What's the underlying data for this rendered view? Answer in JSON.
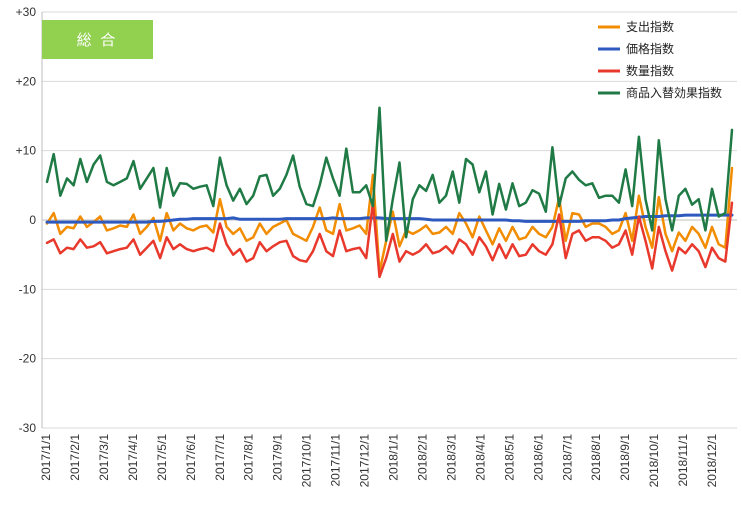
{
  "badge": {
    "label": "総 合",
    "color": "#92d050"
  },
  "chart_data": {
    "type": "line",
    "title": "",
    "xlabel": "",
    "ylabel": "",
    "ylim": [
      -30,
      30
    ],
    "y_ticks": [
      30,
      20,
      10,
      0,
      -10,
      -20,
      -30
    ],
    "y_tick_labels": [
      "+30",
      "+20",
      "+10",
      "0",
      "-10",
      "-20",
      "-30"
    ],
    "grid": true,
    "legend_position": "top-right",
    "x_tick_labels": [
      "2017/1/1",
      "2017/2/1",
      "2017/3/1",
      "2017/4/1",
      "2017/5/1",
      "2017/6/1",
      "2017/7/1",
      "2017/8/1",
      "2017/9/1",
      "2017/10/1",
      "2017/11/1",
      "2017/12/1",
      "2018/1/1",
      "2018/2/1",
      "2018/3/1",
      "2018/4/1",
      "2018/5/1",
      "2018/6/1",
      "2018/7/1",
      "2018/8/1",
      "2018/9/1",
      "2018/10/1",
      "2018/11/1",
      "2018/12/1"
    ],
    "series": [
      {
        "name": "支出指数",
        "color": "#f28c00",
        "values": [
          -0.5,
          1,
          -2,
          -1,
          -1.2,
          0.5,
          -1,
          -0.3,
          0.5,
          -1.5,
          -1.2,
          -0.8,
          -1,
          0.8,
          -2,
          -1,
          0.3,
          -3,
          1,
          -1.5,
          -0.5,
          -1.2,
          -1.5,
          -1,
          -0.8,
          -1.8,
          3,
          -1,
          -2,
          -1.2,
          -3,
          -2.5,
          -0.5,
          -2,
          -1,
          -0.5,
          0,
          -2,
          -2.5,
          -3,
          -1,
          1.8,
          -1.5,
          -2,
          2.3,
          -1.5,
          -1.2,
          -0.8,
          -2,
          6.5,
          -7.5,
          -3,
          1.2,
          -3.8,
          -1.5,
          -2,
          -1.5,
          -0.8,
          -2,
          -1.8,
          -1,
          -2,
          1,
          -0.5,
          -2.5,
          0.5,
          -1.5,
          -3.5,
          -1.2,
          -3,
          -1,
          -2.8,
          -2.5,
          -1,
          -2,
          -2.5,
          -1,
          3.2,
          -3,
          1,
          0.8,
          -1,
          -0.5,
          -0.5,
          -1,
          -2,
          -1.5,
          1,
          -3,
          3.5,
          -1,
          -4,
          3.3,
          -2,
          -4.5,
          -1.8,
          -3,
          -1,
          -2,
          -4,
          -1,
          -3.5,
          -4,
          7.5
        ],
        "line_width": 2.5
      },
      {
        "name": "価格指数",
        "color": "#2e5ac0",
        "values": [
          -0.3,
          -0.3,
          -0.3,
          -0.3,
          -0.3,
          -0.3,
          -0.3,
          -0.3,
          -0.3,
          -0.3,
          -0.3,
          -0.3,
          -0.3,
          -0.3,
          -0.3,
          -0.3,
          -0.2,
          -0.2,
          -0.1,
          0,
          0.1,
          0.1,
          0.2,
          0.2,
          0.2,
          0.2,
          0.2,
          0.2,
          0.3,
          0.1,
          0.1,
          0.1,
          0.1,
          0.1,
          0.1,
          0.1,
          0.2,
          0.2,
          0.2,
          0.2,
          0.2,
          0.2,
          0.2,
          0.3,
          0.2,
          0.2,
          0.2,
          0.2,
          0.3,
          0.3,
          0.3,
          0.2,
          0.2,
          0.2,
          0.2,
          0.2,
          0.2,
          0.1,
          0,
          0,
          0,
          0,
          0,
          0,
          0,
          0,
          0,
          0,
          0,
          0,
          -0.1,
          -0.1,
          -0.2,
          -0.2,
          -0.2,
          -0.2,
          -0.2,
          -0.2,
          -0.2,
          -0.2,
          -0.2,
          -0.1,
          -0.1,
          -0.1,
          -0.1,
          0,
          0,
          0.2,
          0.3,
          0.4,
          0.5,
          0.5,
          0.5,
          0.6,
          0.6,
          0.6,
          0.7,
          0.7,
          0.7,
          0.7,
          0.7,
          0.7,
          0.7,
          0.7
        ],
        "line_width": 3
      },
      {
        "name": "数量指数",
        "color": "#e8392c",
        "values": [
          -3.3,
          -2.8,
          -4.8,
          -4,
          -4.2,
          -2.8,
          -4,
          -3.8,
          -3.2,
          -4.8,
          -4.5,
          -4.2,
          -4,
          -2.8,
          -5,
          -4,
          -3,
          -5.5,
          -2.5,
          -4.2,
          -3.5,
          -4.2,
          -4.5,
          -4.2,
          -4,
          -4.5,
          -0.5,
          -3.5,
          -5,
          -4.2,
          -6,
          -5.5,
          -3.2,
          -4.5,
          -3.8,
          -3.2,
          -3,
          -5.2,
          -5.8,
          -6,
          -4.5,
          -2,
          -4.5,
          -5.2,
          -1.5,
          -4.5,
          -4.2,
          -4,
          -5.5,
          2.5,
          -8.2,
          -5.5,
          -2,
          -6,
          -4.5,
          -5,
          -4.5,
          -3.5,
          -4.8,
          -4.5,
          -3.8,
          -4.8,
          -2.8,
          -3.5,
          -5,
          -2.5,
          -3.8,
          -5.8,
          -3.5,
          -5.5,
          -3.5,
          -5.2,
          -5,
          -3.5,
          -4.5,
          -5,
          -3.5,
          0.8,
          -5.5,
          -2,
          -1.5,
          -3,
          -2.5,
          -2.5,
          -3,
          -4,
          -3.5,
          -1.5,
          -5,
          0.5,
          -3,
          -7,
          -1,
          -4.5,
          -7.3,
          -4,
          -4.8,
          -3.5,
          -4.5,
          -6.8,
          -4,
          -5.5,
          -6,
          2.5
        ],
        "line_width": 2.5
      },
      {
        "name": "商品入替効果指数",
        "color": "#1f7a45",
        "values": [
          5.5,
          9.5,
          3.5,
          6,
          5,
          8.8,
          5.5,
          8,
          9.3,
          5.5,
          5,
          5.5,
          6,
          8.5,
          4.5,
          6,
          7.5,
          1.8,
          7.5,
          3.5,
          5.3,
          5.2,
          4.5,
          4.8,
          5,
          2,
          9,
          5,
          2.8,
          4.5,
          2.3,
          3.5,
          6.3,
          6.5,
          3.5,
          4.5,
          6.5,
          9.3,
          4.8,
          2.3,
          2,
          5,
          9,
          6,
          3.5,
          10.3,
          4,
          4,
          5,
          2,
          16.2,
          -3,
          3,
          8.3,
          -2.5,
          3,
          5,
          4.2,
          6.5,
          2.5,
          3.5,
          7,
          2.5,
          8.8,
          8,
          4,
          7,
          0.8,
          5.2,
          1.5,
          5.3,
          2,
          2.5,
          4.3,
          3.8,
          1.2,
          10.5,
          2,
          6,
          7,
          5.8,
          5,
          5.3,
          3.2,
          3.5,
          3.5,
          2.5,
          7.3,
          2,
          12,
          3,
          -1.5,
          11.5,
          3,
          -1.5,
          3.5,
          4.5,
          2.2,
          3,
          -1.5,
          4.5,
          0.5,
          1,
          13
        ]
      }
    ]
  }
}
